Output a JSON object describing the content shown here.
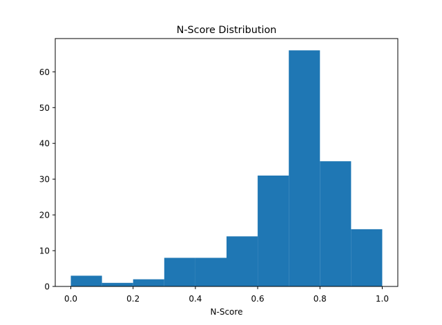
{
  "chart_data": {
    "type": "bar",
    "title": "N-Score Distribution",
    "xlabel": "N-Score",
    "ylabel": "",
    "bin_edges": [
      0.0,
      0.1,
      0.2,
      0.3,
      0.4,
      0.5,
      0.6,
      0.7,
      0.8,
      0.9,
      1.0
    ],
    "values": [
      3,
      1,
      2,
      8,
      8,
      14,
      31,
      66,
      35,
      16
    ],
    "xlim": [
      -0.05,
      1.05
    ],
    "ylim": [
      0,
      69.3
    ],
    "x_ticks": [
      0.0,
      0.2,
      0.4,
      0.6,
      0.8,
      1.0
    ],
    "x_tick_labels": [
      "0.0",
      "0.2",
      "0.4",
      "0.6",
      "0.8",
      "1.0"
    ],
    "y_ticks": [
      0,
      10,
      20,
      30,
      40,
      50,
      60
    ],
    "y_tick_labels": [
      "0",
      "10",
      "20",
      "30",
      "40",
      "50",
      "60"
    ],
    "bar_color": "#1f77b4",
    "grid": false,
    "legend": "none"
  }
}
